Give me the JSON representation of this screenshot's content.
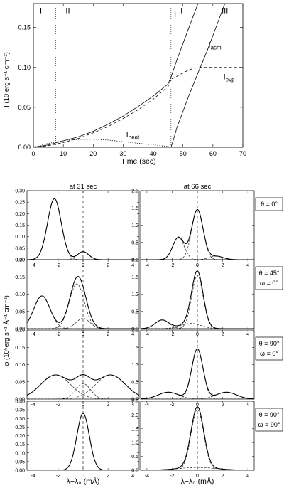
{
  "chart_data": [
    {
      "type": "line",
      "xlabel": "Time (sec)",
      "ylabel": "I (10 erg s⁻¹ cm⁻²)",
      "xlim": [
        0,
        70
      ],
      "ylim": [
        0,
        0.18
      ],
      "xticks": [
        0,
        10,
        20,
        30,
        40,
        50,
        60,
        70
      ],
      "yticks": [
        0.0,
        0.05,
        0.1,
        0.15
      ],
      "phase_markers": [
        {
          "x": 7.5,
          "label": "I"
        },
        {
          "x": 46,
          "label": ""
        }
      ],
      "region_labels": [
        {
          "label": "I",
          "x": 2.5,
          "y": 0.168
        },
        {
          "label": "II",
          "x": 11.5,
          "y": 0.168
        },
        {
          "label": "I",
          "x": 49.5,
          "y": 0.168
        },
        {
          "label": "III",
          "x": 64,
          "y": 0.168
        }
      ],
      "series": [
        {
          "name": "I",
          "style": "solid",
          "x": [
            0,
            5,
            10,
            15,
            20,
            25,
            30,
            35,
            40,
            45,
            46,
            48,
            52,
            55
          ],
          "y": [
            0,
            0.003,
            0.008,
            0.013,
            0.02,
            0.029,
            0.039,
            0.051,
            0.064,
            0.079,
            0.088,
            0.11,
            0.15,
            0.18
          ]
        },
        {
          "name": "I_acm",
          "style": "solid",
          "x": [
            46,
            47,
            48,
            50,
            52,
            55,
            58,
            60,
            62,
            64
          ],
          "y": [
            0,
            0.012,
            0.025,
            0.045,
            0.065,
            0.093,
            0.12,
            0.14,
            0.16,
            0.18
          ]
        },
        {
          "name": "I_evp",
          "style": "dashed",
          "x": [
            0,
            5,
            10,
            15,
            20,
            25,
            30,
            35,
            40,
            45,
            46,
            48,
            50,
            52,
            55,
            58,
            62,
            66,
            70
          ],
          "y": [
            0,
            0.002,
            0.006,
            0.011,
            0.018,
            0.026,
            0.036,
            0.047,
            0.06,
            0.076,
            0.085,
            0.089,
            0.093,
            0.097,
            0.1,
            0.1,
            0.1,
            0.1,
            0.1
          ]
        },
        {
          "name": "I_heat",
          "style": "dotted",
          "x": [
            0,
            4,
            8,
            12,
            16,
            20,
            25,
            30,
            35,
            40,
            45,
            46,
            48
          ],
          "y": [
            0,
            0.004,
            0.007,
            0.009,
            0.01,
            0.01,
            0.009,
            0.007,
            0.005,
            0.003,
            0.001,
            0,
            0
          ]
        }
      ],
      "curve_labels": [
        {
          "label": "I",
          "sub": "",
          "x": 47,
          "y": 0.163
        },
        {
          "label": "I",
          "sub": "acm",
          "x": 58.5,
          "y": 0.125
        },
        {
          "label": "I",
          "sub": "evp",
          "x": 63.5,
          "y": 0.085
        },
        {
          "label": "I",
          "sub": "heat",
          "x": 31,
          "y": 0.013
        }
      ]
    },
    {
      "type": "line",
      "description_free": true,
      "ylabel": "φ (10⁵erg s⁻¹ Å⁻¹ cm⁻²)",
      "xlabel": "λ−λ₀ (mÅ)",
      "column_titles": [
        "at 31 sec",
        "at 66 sec"
      ],
      "xlim": [
        -4.5,
        4.5
      ],
      "xticks": [
        -4,
        -2,
        0,
        2,
        4
      ],
      "rows": [
        {
          "conditions": [
            "θ = 0°"
          ],
          "panels": [
            {
              "ylim": [
                0,
                0.3
              ],
              "yticks": [
                0.0,
                0.05,
                0.1,
                0.15,
                0.2,
                0.25,
                0.3
              ],
              "components": [
                {
                  "amp": 0.265,
                  "mu": -2.3,
                  "sigma": 0.55
                },
                {
                  "amp": 0.035,
                  "mu": 0.0,
                  "sigma": 0.45
                }
              ]
            },
            {
              "ylim": [
                0,
                2.0
              ],
              "yticks": [
                0.0,
                0.5,
                1.0,
                1.5,
                2.0
              ],
              "components": [
                {
                  "amp": 0.65,
                  "mu": -1.5,
                  "sigma": 0.45
                },
                {
                  "amp": 1.45,
                  "mu": 0.0,
                  "sigma": 0.45
                },
                {
                  "amp": 0.1,
                  "mu": 1.5,
                  "sigma": 0.55
                }
              ]
            }
          ]
        },
        {
          "conditions": [
            "θ = 45°",
            "ω = 0°"
          ],
          "panels": [
            {
              "ylim": [
                0,
                0.2
              ],
              "yticks": [
                0.0,
                0.05,
                0.1,
                0.15,
                0.2
              ],
              "components": [
                {
                  "amp": 0.095,
                  "mu": -3.3,
                  "sigma": 0.65
                },
                {
                  "amp": 0.13,
                  "mu": -0.5,
                  "sigma": 0.6
                },
                {
                  "amp": 0.03,
                  "mu": 0.0,
                  "sigma": 0.55
                }
              ]
            },
            {
              "ylim": [
                0,
                2.0
              ],
              "yticks": [
                0.0,
                0.5,
                1.0,
                1.5,
                2.0
              ],
              "components": [
                {
                  "amp": 0.25,
                  "mu": -2.8,
                  "sigma": 0.55
                },
                {
                  "amp": 1.55,
                  "mu": 0.0,
                  "sigma": 0.45
                },
                {
                  "amp": 0.15,
                  "mu": -0.5,
                  "sigma": 0.8
                }
              ]
            }
          ]
        },
        {
          "conditions": [
            "θ = 90°",
            "ω = 0°"
          ],
          "panels": [
            {
              "ylim": [
                0,
                0.2
              ],
              "yticks": [
                0.0,
                0.05,
                0.1,
                0.15,
                0.2
              ],
              "components": [
                {
                  "amp": 0.07,
                  "mu": -2.2,
                  "sigma": 1.2
                },
                {
                  "amp": 0.07,
                  "mu": 2.2,
                  "sigma": 1.2
                },
                {
                  "amp": 0.045,
                  "mu": 0.0,
                  "sigma": 0.6
                }
              ]
            },
            {
              "ylim": [
                0,
                2.0
              ],
              "yticks": [
                0.0,
                0.5,
                1.0,
                1.5,
                2.0
              ],
              "components": [
                {
                  "amp": 1.45,
                  "mu": 0.0,
                  "sigma": 0.45
                },
                {
                  "amp": 0.2,
                  "mu": -2.3,
                  "sigma": 0.8
                },
                {
                  "amp": 0.2,
                  "mu": 2.3,
                  "sigma": 0.8
                }
              ]
            }
          ]
        },
        {
          "conditions": [
            "θ = 90°",
            "ω = 90°"
          ],
          "panels": [
            {
              "ylim": [
                0,
                0.4
              ],
              "yticks": [
                0.0,
                0.05,
                0.1,
                0.15,
                0.2,
                0.25,
                0.3,
                0.35,
                0.4
              ],
              "components": [
                {
                  "amp": 0.33,
                  "mu": 0.0,
                  "sigma": 0.5
                }
              ]
            },
            {
              "ylim": [
                0,
                2.5
              ],
              "yticks": [
                0.0,
                0.5,
                1.0,
                1.5,
                2.0,
                2.5
              ],
              "components": [
                {
                  "amp": 2.2,
                  "mu": 0.0,
                  "sigma": 0.5
                },
                {
                  "amp": 0.1,
                  "mu": 0.0,
                  "sigma": 1.5
                }
              ]
            }
          ]
        }
      ]
    }
  ]
}
